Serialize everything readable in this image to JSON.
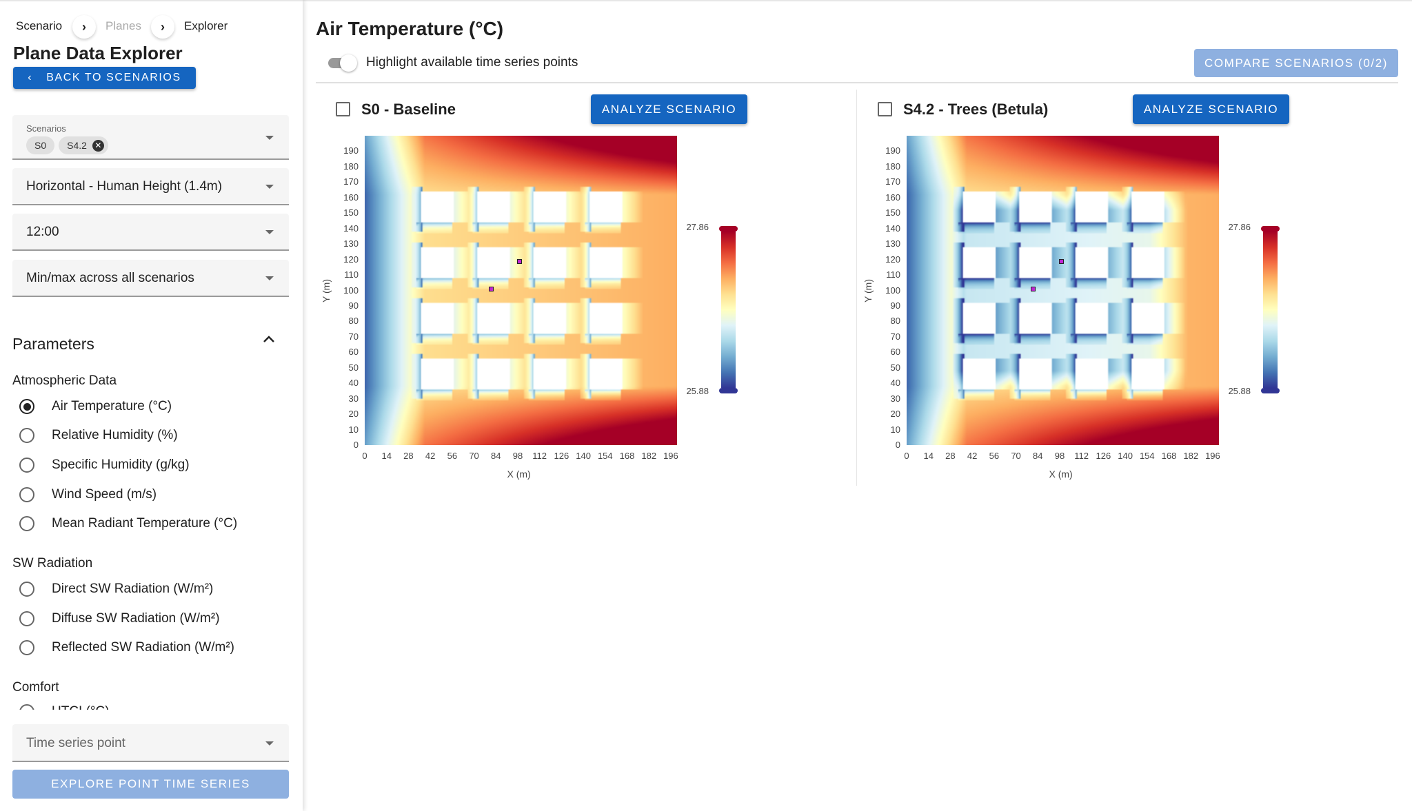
{
  "breadcrumb": [
    "Scenario",
    "Planes",
    "Explorer"
  ],
  "sidebar": {
    "title": "Plane Data Explorer",
    "back_label": "Back to Scenarios",
    "scenarios_label": "Scenarios",
    "scenario_chips": [
      "S0",
      "S4.2"
    ],
    "plane": "Horizontal - Human Height (1.4m)",
    "time": "12:00",
    "range_mode": "Min/max across all scenarios",
    "parameters_title": "Parameters",
    "groups": [
      {
        "title": "Atmospheric Data",
        "items": [
          "Air Temperature (°C)",
          "Relative Humidity (%)",
          "Specific Humidity (g/kg)",
          "Wind Speed (m/s)",
          "Mean Radiant Temperature (°C)"
        ]
      },
      {
        "title": "SW Radiation",
        "items": [
          "Direct SW Radiation (W/m²)",
          "Diffuse SW Radiation (W/m²)",
          "Reflected SW Radiation (W/m²)"
        ]
      },
      {
        "title": "Comfort",
        "items": [
          "UTCI (°C)"
        ]
      }
    ],
    "selected_parameter": "Air Temperature (°C)",
    "time_series_placeholder": "Time series point",
    "explore_label": "Explore Point Time Series"
  },
  "main": {
    "title": "Air Temperature (°C)",
    "toggle_label": "Highlight available time series points",
    "toggle_on": false,
    "compare_label": "Compare Scenarios (0/2)",
    "analyze_label": "Analyze Scenario"
  },
  "colors": {
    "accent": "#1565c0",
    "accent_disabled": "#8eb0e0",
    "point": "#c026d3"
  },
  "chart_data": [
    {
      "type": "heatmap",
      "title": "S0 - Baseline",
      "xlabel": "X (m)",
      "ylabel": "Y (m)",
      "xlim": [
        0,
        200
      ],
      "ylim": [
        0,
        200
      ],
      "xticks": [
        "0",
        "14",
        "28",
        "42",
        "56",
        "70",
        "84",
        "98",
        "112",
        "126",
        "140",
        "154",
        "168",
        "182",
        "196"
      ],
      "yticks": [
        "0",
        "10",
        "20",
        "30",
        "40",
        "50",
        "60",
        "70",
        "80",
        "90",
        "100",
        "110",
        "120",
        "130",
        "140",
        "150",
        "160",
        "170",
        "180",
        "190"
      ],
      "colorbar": {
        "min": "25.88",
        "max": "27.86",
        "colormap": "RdYlBu_r"
      },
      "buildings_x": [
        [
          36,
          56
        ],
        [
          72,
          92
        ],
        [
          108,
          128
        ],
        [
          144,
          164
        ]
      ],
      "buildings_y": [
        [
          36,
          56
        ],
        [
          72,
          92
        ],
        [
          108,
          128
        ],
        [
          144,
          164
        ]
      ],
      "time_series_points": [
        [
          99,
          119
        ],
        [
          81,
          101
        ]
      ],
      "trees": false
    },
    {
      "type": "heatmap",
      "title": "S4.2 - Trees (Betula)",
      "xlabel": "X (m)",
      "ylabel": "Y (m)",
      "xlim": [
        0,
        200
      ],
      "ylim": [
        0,
        200
      ],
      "xticks": [
        "0",
        "14",
        "28",
        "42",
        "56",
        "70",
        "84",
        "98",
        "112",
        "126",
        "140",
        "154",
        "168",
        "182",
        "196"
      ],
      "yticks": [
        "0",
        "10",
        "20",
        "30",
        "40",
        "50",
        "60",
        "70",
        "80",
        "90",
        "100",
        "110",
        "120",
        "130",
        "140",
        "150",
        "160",
        "170",
        "180",
        "190"
      ],
      "colorbar": {
        "min": "25.88",
        "max": "27.86",
        "colormap": "RdYlBu_r"
      },
      "buildings_x": [
        [
          36,
          56
        ],
        [
          72,
          92
        ],
        [
          108,
          128
        ],
        [
          144,
          164
        ]
      ],
      "buildings_y": [
        [
          36,
          56
        ],
        [
          72,
          92
        ],
        [
          108,
          128
        ],
        [
          144,
          164
        ]
      ],
      "time_series_points": [
        [
          99,
          119
        ],
        [
          81,
          101
        ]
      ],
      "trees": true
    }
  ]
}
